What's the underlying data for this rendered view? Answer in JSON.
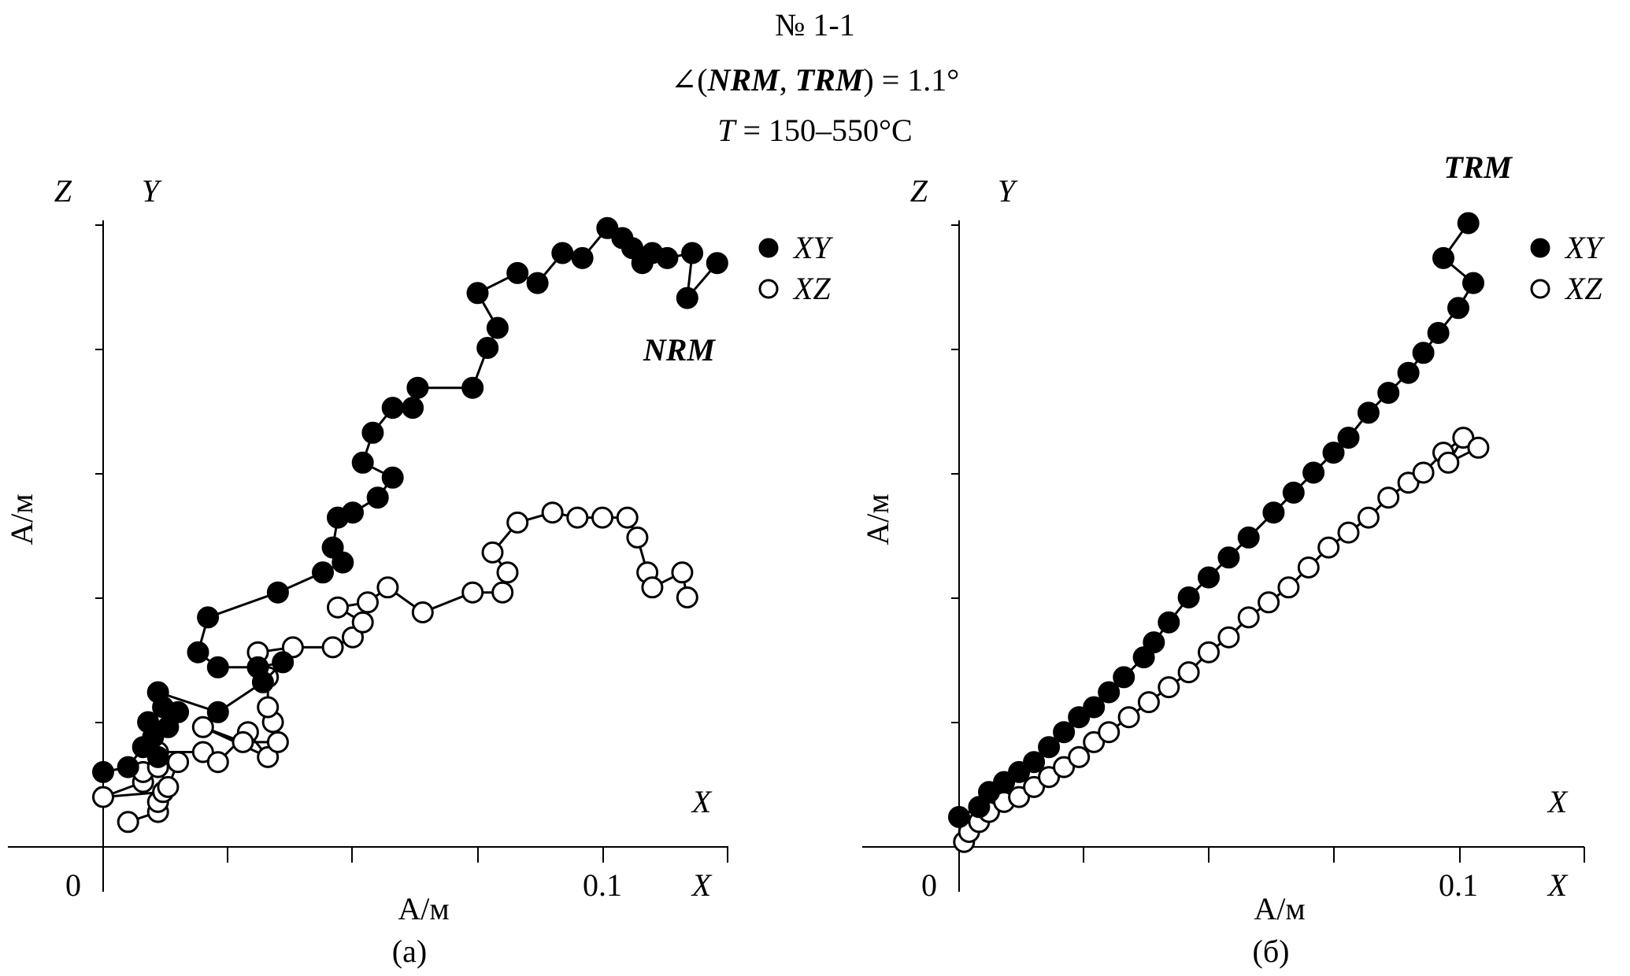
{
  "header": {
    "number": "№ 1-1",
    "angle_prefix": "∠(",
    "nrm": "NRM",
    "comma": ", ",
    "trm": "TRM",
    "angle_suffix": ") = 1.1°",
    "temp_var": "T",
    "temp_value": " = 150–550°C"
  },
  "legend_labels": {
    "xy": "XY",
    "xz": "XZ"
  },
  "chart_data": [
    {
      "type": "scatter",
      "panel_label": "(а)",
      "curve_label": "NRM",
      "xlabel": "А/м",
      "ylabel": "А/м",
      "x_axis_name": "X",
      "y_axis_names": [
        "Z",
        "Y"
      ],
      "x_ticks": [
        "0",
        "0.1"
      ],
      "xlim": [
        -0.02,
        0.125
      ],
      "ylim": [
        0,
        0.125
      ],
      "legend": [
        {
          "name": "XY",
          "style": "filled"
        },
        {
          "name": "XZ",
          "style": "open"
        }
      ],
      "series": [
        {
          "name": "XY",
          "points": [
            [
              0.0,
              0.015
            ],
            [
              0.005,
              0.016
            ],
            [
              0.008,
              0.02
            ],
            [
              0.011,
              0.018
            ],
            [
              0.01,
              0.022
            ],
            [
              0.009,
              0.025
            ],
            [
              0.013,
              0.024
            ],
            [
              0.012,
              0.028
            ],
            [
              0.015,
              0.027
            ],
            [
              0.011,
              0.031
            ],
            [
              0.023,
              0.027
            ],
            [
              0.032,
              0.033
            ],
            [
              0.036,
              0.037
            ],
            [
              0.031,
              0.036
            ],
            [
              0.023,
              0.036
            ],
            [
              0.019,
              0.039
            ],
            [
              0.021,
              0.046
            ],
            [
              0.035,
              0.051
            ],
            [
              0.044,
              0.055
            ],
            [
              0.048,
              0.057
            ],
            [
              0.046,
              0.06
            ],
            [
              0.047,
              0.066
            ],
            [
              0.05,
              0.067
            ],
            [
              0.055,
              0.07
            ],
            [
              0.058,
              0.074
            ],
            [
              0.052,
              0.077
            ],
            [
              0.054,
              0.083
            ],
            [
              0.058,
              0.088
            ],
            [
              0.062,
              0.088
            ],
            [
              0.063,
              0.092
            ],
            [
              0.074,
              0.092
            ],
            [
              0.077,
              0.1
            ],
            [
              0.079,
              0.104
            ],
            [
              0.075,
              0.111
            ],
            [
              0.083,
              0.115
            ],
            [
              0.087,
              0.113
            ],
            [
              0.092,
              0.119
            ],
            [
              0.096,
              0.118
            ],
            [
              0.101,
              0.124
            ],
            [
              0.104,
              0.122
            ],
            [
              0.106,
              0.12
            ],
            [
              0.108,
              0.117
            ],
            [
              0.11,
              0.119
            ],
            [
              0.113,
              0.118
            ],
            [
              0.118,
              0.119
            ],
            [
              0.117,
              0.11
            ],
            [
              0.123,
              0.117
            ]
          ]
        },
        {
          "name": "XZ",
          "points": [
            [
              0.005,
              0.005
            ],
            [
              0.011,
              0.007
            ],
            [
              0.011,
              0.009
            ],
            [
              0.012,
              0.011
            ],
            [
              0.0,
              0.01
            ],
            [
              0.008,
              0.013
            ],
            [
              0.008,
              0.015
            ],
            [
              0.011,
              0.016
            ],
            [
              0.013,
              0.012
            ],
            [
              0.015,
              0.017
            ],
            [
              0.011,
              0.019
            ],
            [
              0.02,
              0.019
            ],
            [
              0.023,
              0.017
            ],
            [
              0.029,
              0.023
            ],
            [
              0.033,
              0.018
            ],
            [
              0.02,
              0.024
            ],
            [
              0.028,
              0.021
            ],
            [
              0.035,
              0.021
            ],
            [
              0.034,
              0.025
            ],
            [
              0.033,
              0.028
            ],
            [
              0.033,
              0.034
            ],
            [
              0.031,
              0.039
            ],
            [
              0.038,
              0.04
            ],
            [
              0.046,
              0.04
            ],
            [
              0.05,
              0.042
            ],
            [
              0.052,
              0.045
            ],
            [
              0.047,
              0.048
            ],
            [
              0.053,
              0.049
            ],
            [
              0.057,
              0.052
            ],
            [
              0.064,
              0.047
            ],
            [
              0.074,
              0.051
            ],
            [
              0.08,
              0.051
            ],
            [
              0.081,
              0.055
            ],
            [
              0.078,
              0.059
            ],
            [
              0.083,
              0.065
            ],
            [
              0.09,
              0.067
            ],
            [
              0.095,
              0.066
            ],
            [
              0.1,
              0.066
            ],
            [
              0.105,
              0.066
            ],
            [
              0.107,
              0.062
            ],
            [
              0.109,
              0.055
            ],
            [
              0.11,
              0.052
            ],
            [
              0.116,
              0.055
            ],
            [
              0.117,
              0.05
            ]
          ]
        }
      ]
    },
    {
      "type": "scatter",
      "panel_label": "(б)",
      "curve_label": "TRM",
      "xlabel": "А/м",
      "ylabel": "А/м",
      "x_axis_name": "X",
      "y_axis_names": [
        "Z",
        "Y"
      ],
      "x_ticks": [
        "0",
        "0.1"
      ],
      "xlim": [
        -0.02,
        0.125
      ],
      "ylim": [
        0,
        0.125
      ],
      "legend": [
        {
          "name": "XY",
          "style": "filled"
        },
        {
          "name": "XZ",
          "style": "open"
        }
      ],
      "series": [
        {
          "name": "XY",
          "points": [
            [
              0.0,
              0.006
            ],
            [
              0.004,
              0.008
            ],
            [
              0.006,
              0.011
            ],
            [
              0.009,
              0.013
            ],
            [
              0.012,
              0.015
            ],
            [
              0.015,
              0.017
            ],
            [
              0.018,
              0.02
            ],
            [
              0.021,
              0.023
            ],
            [
              0.024,
              0.026
            ],
            [
              0.027,
              0.028
            ],
            [
              0.03,
              0.031
            ],
            [
              0.033,
              0.034
            ],
            [
              0.037,
              0.038
            ],
            [
              0.039,
              0.041
            ],
            [
              0.042,
              0.045
            ],
            [
              0.046,
              0.05
            ],
            [
              0.05,
              0.054
            ],
            [
              0.054,
              0.058
            ],
            [
              0.058,
              0.062
            ],
            [
              0.063,
              0.067
            ],
            [
              0.067,
              0.071
            ],
            [
              0.071,
              0.075
            ],
            [
              0.075,
              0.079
            ],
            [
              0.078,
              0.082
            ],
            [
              0.082,
              0.087
            ],
            [
              0.086,
              0.091
            ],
            [
              0.09,
              0.095
            ],
            [
              0.093,
              0.099
            ],
            [
              0.096,
              0.103
            ],
            [
              0.1,
              0.108
            ],
            [
              0.103,
              0.113
            ],
            [
              0.097,
              0.118
            ],
            [
              0.102,
              0.125
            ]
          ]
        },
        {
          "name": "XZ",
          "points": [
            [
              0.001,
              0.001
            ],
            [
              0.002,
              0.003
            ],
            [
              0.004,
              0.005
            ],
            [
              0.006,
              0.007
            ],
            [
              0.009,
              0.009
            ],
            [
              0.012,
              0.01
            ],
            [
              0.015,
              0.012
            ],
            [
              0.018,
              0.014
            ],
            [
              0.021,
              0.016
            ],
            [
              0.024,
              0.018
            ],
            [
              0.027,
              0.021
            ],
            [
              0.03,
              0.023
            ],
            [
              0.034,
              0.026
            ],
            [
              0.038,
              0.029
            ],
            [
              0.042,
              0.032
            ],
            [
              0.046,
              0.035
            ],
            [
              0.05,
              0.039
            ],
            [
              0.054,
              0.042
            ],
            [
              0.058,
              0.046
            ],
            [
              0.062,
              0.049
            ],
            [
              0.066,
              0.052
            ],
            [
              0.07,
              0.056
            ],
            [
              0.074,
              0.06
            ],
            [
              0.078,
              0.063
            ],
            [
              0.082,
              0.066
            ],
            [
              0.086,
              0.07
            ],
            [
              0.09,
              0.073
            ],
            [
              0.093,
              0.075
            ],
            [
              0.097,
              0.079
            ],
            [
              0.101,
              0.082
            ],
            [
              0.098,
              0.077
            ],
            [
              0.104,
              0.08
            ]
          ]
        }
      ]
    }
  ]
}
